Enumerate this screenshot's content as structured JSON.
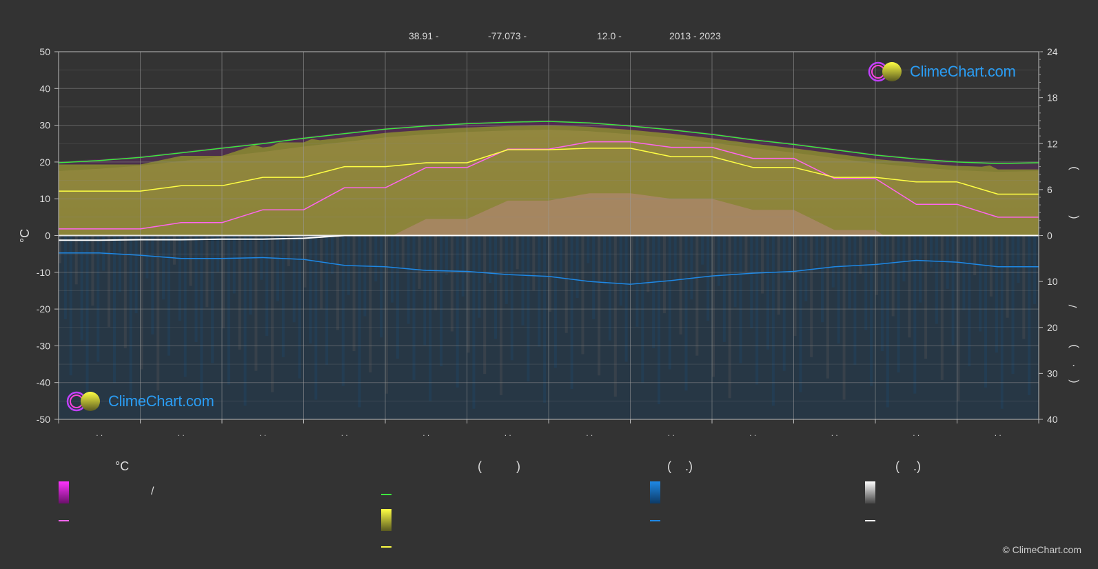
{
  "header": {
    "lat": "38.91 -",
    "lon": "-77.073 -",
    "elev": "12.0 -",
    "years": "2013 - 2023"
  },
  "axes": {
    "left_unit": "°C",
    "left_ticks": [
      "50",
      "40",
      "30",
      "20",
      "10",
      "0",
      "-10",
      "-20",
      "-30",
      "-40",
      "-50"
    ],
    "right_top_ticks": [
      "24",
      "18",
      "12",
      "6",
      "0"
    ],
    "right_bottom_ticks": [
      "10",
      "20",
      "30",
      "40"
    ],
    "right_label_parens_top": ")",
    "right_label_parens_top2": "(",
    "right_label_slash": "/",
    "right_label_parens_bottom": ")",
    "right_label_dot": "·",
    "right_label_parens_bottom2": "(",
    "month_tick_text": ". ."
  },
  "legend": {
    "col1_title": "°C",
    "col1_row1": "/",
    "col2_title": "(          )",
    "col3_title": "(    .)",
    "col4_title": "(    .)"
  },
  "colors": {
    "daylight": "#3ee83e",
    "sunshine": "#ffff44",
    "max_temp": "#ff66ee",
    "precip": "#1e88e5",
    "snow": "#ffffff",
    "magenta_band": "#c020c0",
    "pink_band": "#d48aa8",
    "olive_band": "#8c8c30",
    "blue_band": "#1e4a6e",
    "brand": "#2a9df4"
  },
  "logo_text": "ClimeChart.com",
  "copyright": "© ClimeChart.com",
  "chart_data": {
    "type": "line",
    "x_months": 12,
    "temp_ylim": [
      -50,
      50
    ],
    "hours_ylim": [
      0,
      24
    ],
    "precip_ylim": [
      0,
      40
    ],
    "series": [
      {
        "key": "daylight",
        "axis": "hours",
        "x": [
          0,
          0.5,
          1,
          1.5,
          2,
          2.5,
          3,
          3.5,
          4,
          4.5,
          5,
          5.5,
          6,
          6.5,
          7,
          7.5,
          8,
          8.5,
          9,
          9.5,
          10,
          10.5,
          11,
          11.5,
          12
        ],
        "values": [
          9.5,
          9.8,
          10.2,
          10.8,
          11.4,
          12.0,
          12.7,
          13.3,
          13.9,
          14.3,
          14.6,
          14.8,
          14.9,
          14.7,
          14.3,
          13.8,
          13.2,
          12.5,
          11.9,
          11.2,
          10.5,
          10.0,
          9.6,
          9.4,
          9.5
        ]
      },
      {
        "key": "sunshine",
        "axis": "hours",
        "x": [
          0,
          1,
          1.5,
          2,
          2.5,
          3,
          3.5,
          4,
          4.5,
          5,
          5.5,
          6,
          6.5,
          7,
          7.5,
          8,
          8.5,
          9,
          9.5,
          10,
          10.5,
          11,
          11.5,
          12
        ],
        "values": [
          5.8,
          5.8,
          6.5,
          6.5,
          7.6,
          7.6,
          9.0,
          9.0,
          9.5,
          9.5,
          11.2,
          11.2,
          11.4,
          11.4,
          10.3,
          10.3,
          8.9,
          8.9,
          7.6,
          7.6,
          7.0,
          7.0,
          5.4,
          5.4
        ]
      },
      {
        "key": "max_temp",
        "axis": "temp",
        "x": [
          0,
          1,
          1.5,
          2,
          2.5,
          3,
          3.5,
          4,
          4.5,
          5,
          5.5,
          6,
          6.5,
          7,
          7.5,
          8,
          8.5,
          9,
          9.5,
          10,
          10.5,
          11,
          11.5,
          12
        ],
        "values": [
          1.8,
          1.8,
          3.5,
          3.5,
          7.0,
          7.0,
          13.0,
          13.0,
          18.5,
          18.5,
          23.5,
          23.5,
          25.5,
          25.5,
          24.0,
          24.0,
          21.0,
          21.0,
          15.5,
          15.5,
          8.5,
          8.5,
          5.0,
          5.0
        ]
      },
      {
        "key": "precip",
        "axis": "precip",
        "x": [
          0,
          0.5,
          1,
          1.5,
          2,
          2.5,
          3,
          3.5,
          4,
          4.5,
          5,
          5.5,
          6,
          6.5,
          7,
          7.5,
          8,
          8.5,
          9,
          9.5,
          10,
          10.5,
          11,
          11.5,
          12
        ],
        "values": [
          3.8,
          3.8,
          4.3,
          5.0,
          5.0,
          4.8,
          5.2,
          6.5,
          6.8,
          7.6,
          7.8,
          8.5,
          8.9,
          10.0,
          10.6,
          9.8,
          8.8,
          8.2,
          7.8,
          6.8,
          6.3,
          5.4,
          5.8,
          6.8,
          6.8
        ]
      },
      {
        "key": "snow",
        "axis": "precip",
        "x": [
          0,
          0.5,
          1,
          1.5,
          2,
          2.5,
          3,
          3.5,
          4,
          12
        ],
        "values": [
          1.0,
          1.0,
          0.9,
          0.9,
          0.8,
          0.8,
          0.6,
          0.0,
          0.0,
          0.0
        ]
      }
    ]
  }
}
